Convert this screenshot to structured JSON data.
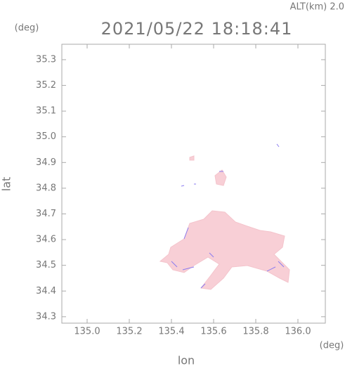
{
  "chart_data": {
    "type": "map",
    "title": "2021/05/22 18:18:41",
    "subtitle": "ALT(km) 2.0",
    "x_label": "lon",
    "y_label": "lat",
    "x_unit": "(deg)",
    "y_unit": "(deg)",
    "xlim": [
      134.88,
      136.13
    ],
    "ylim": [
      34.275,
      35.36
    ],
    "xticks": [
      {
        "value": 135,
        "label": "135.0"
      },
      135.2,
      135.4,
      135.6,
      135.8,
      {
        "value": 136,
        "label": "136.0"
      }
    ],
    "yticks": [
      34.3,
      34.4,
      34.5,
      34.6,
      34.7,
      34.8,
      34.9,
      {
        "value": 35,
        "label": "35.0"
      },
      35.1,
      35.2,
      35.3
    ],
    "color": "#f8cfd6"
  }
}
